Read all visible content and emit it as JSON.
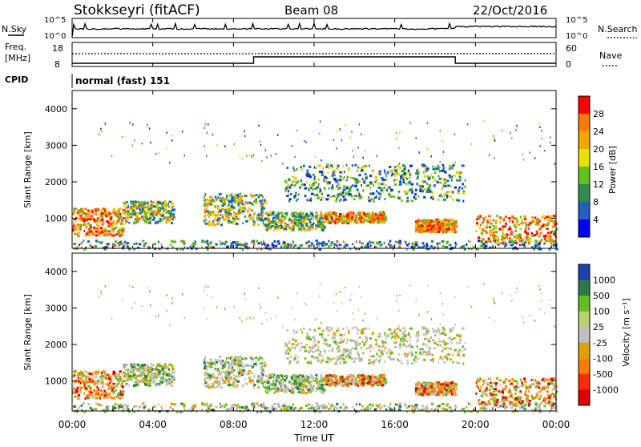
{
  "header": {
    "station": "Stokkseyri (fitACF)",
    "beam": "Beam 08",
    "date": "22/Oct/2016"
  },
  "noise_panel": {
    "left_label": "N.Sky",
    "right_label": "N.Search",
    "ticks_left": [
      "10^5",
      "10^0"
    ],
    "ticks_right": [
      "10^5",
      "10^0"
    ]
  },
  "freq_panel": {
    "left_label_line1": "Freq.",
    "left_label_line2": "[MHz]",
    "right_label": "Nave",
    "ticks_left": [
      "18",
      "8"
    ],
    "ticks_right": [
      "60",
      "0"
    ],
    "freq_steps": [
      {
        "x_hour": 0,
        "value": 8
      },
      {
        "x_hour": 9,
        "value": 12
      },
      {
        "x_hour": 19,
        "value": 8
      },
      {
        "x_hour": 24,
        "value": 8
      }
    ]
  },
  "cpid_panel": {
    "label": "CPID",
    "program": "normal (fast) 151"
  },
  "chart_data": [
    {
      "type": "heatmap",
      "name": "power",
      "ylabel": "Slant Range [km]",
      "ylim": [
        180,
        4500
      ],
      "yticks": [
        "1000",
        "2000",
        "3000",
        "4000"
      ],
      "colorbar_label": "Power [dB]",
      "colorbar_ticks": [
        "28",
        "24",
        "20",
        "16",
        "12",
        "8",
        "4"
      ],
      "colorbar_colors": [
        "#ff0000",
        "#ff7a00",
        "#f2a600",
        "#e8e000",
        "#5fc01e",
        "#2f8a4e",
        "#2060c0",
        "#0000ff"
      ]
    },
    {
      "type": "heatmap",
      "name": "velocity",
      "ylabel": "Slant Range [km]",
      "ylim": [
        180,
        4500
      ],
      "yticks": [
        "1000",
        "2000",
        "3000",
        "4000"
      ],
      "colorbar_label": "Velocity [m s⁻¹]",
      "colorbar_ticks": [
        "1000",
        "500",
        "100",
        "25",
        "-25",
        "-100",
        "-500",
        "-1000"
      ],
      "colorbar_colors": [
        "#2040b0",
        "#2a7a4a",
        "#5fc01e",
        "#b8d070",
        "#c0c0c0",
        "#e0a000",
        "#ff7a00",
        "#ff2a00",
        "#e00000"
      ]
    }
  ],
  "x_axis": {
    "label": "Time UT",
    "ticks": [
      "00:00",
      "04:00",
      "08:00",
      "12:00",
      "16:00",
      "20:00",
      "00:00"
    ]
  }
}
